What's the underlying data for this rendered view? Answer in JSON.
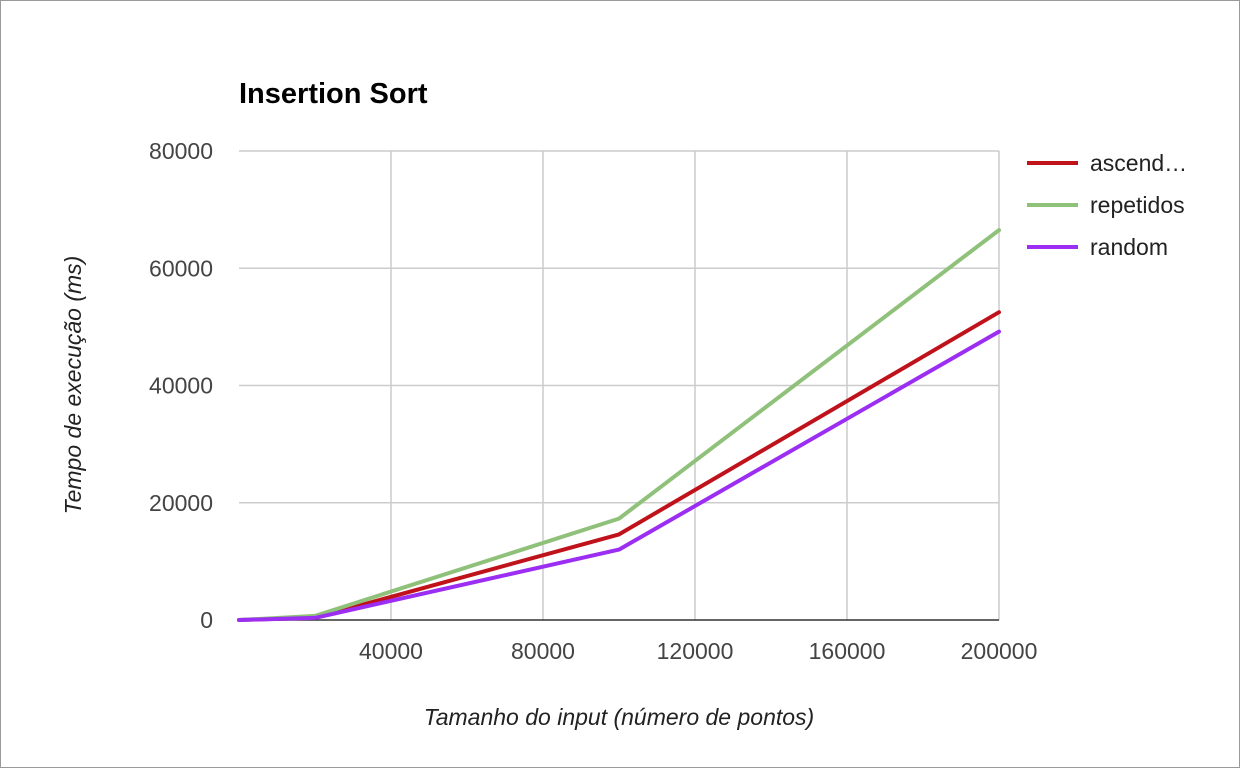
{
  "chart_data": {
    "type": "line",
    "title": "Insertion Sort",
    "xlabel": "Tamanho do input (número de pontos)",
    "ylabel": "Tempo de execução (ms)",
    "xlim": [
      0,
      200000
    ],
    "ylim": [
      0,
      80000
    ],
    "x_ticks": [
      "40000",
      "80000",
      "120000",
      "160000",
      "200000"
    ],
    "y_ticks": [
      "0",
      "20000",
      "40000",
      "60000",
      "80000"
    ],
    "grid": true,
    "legend_position": "right",
    "series": [
      {
        "name": "ascend…",
        "color": "#c0121b",
        "x": [
          0,
          20000,
          100000,
          200000
        ],
        "values": [
          0,
          400,
          14600,
          52500
        ]
      },
      {
        "name": "repetidos",
        "color": "#8fc17a",
        "x": [
          0,
          20000,
          100000,
          200000
        ],
        "values": [
          0,
          700,
          17300,
          66500
        ]
      },
      {
        "name": "random",
        "color": "#9b2ef2",
        "x": [
          0,
          20000,
          100000,
          200000
        ],
        "values": [
          0,
          350,
          12000,
          49200
        ]
      }
    ]
  }
}
